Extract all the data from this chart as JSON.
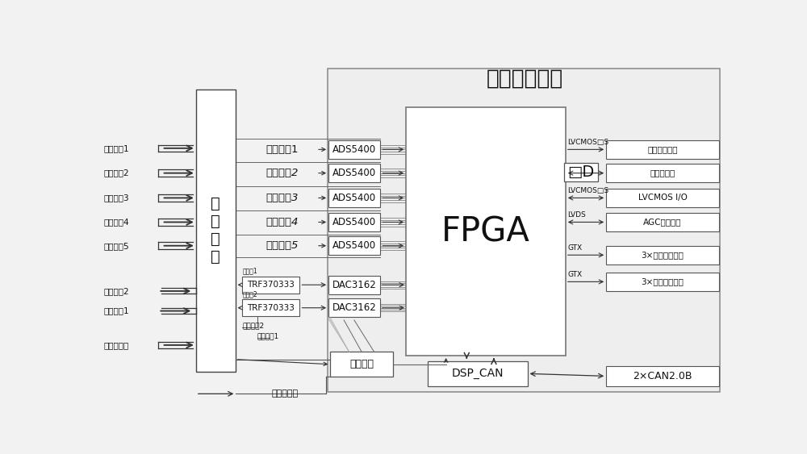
{
  "title": "数字处理模块",
  "bg_color": "#f2f2f2",
  "box_fill": "#ffffff",
  "text_color": "#111111",
  "left_recv": [
    "接收信道1",
    "接收信道2",
    "接收信道3",
    "接收信道4",
    "接收信道5"
  ],
  "left_tx": [
    "发射信道2",
    "发射信道1",
    "外时钟接收"
  ],
  "channel_module": "信\n道\n模\n块",
  "amp_signals": [
    "放大信号1",
    "放大信号2",
    "放大信号3",
    "放大信号4",
    "放大信号5"
  ],
  "adc_labels": [
    "ADS5400",
    "ADS5400",
    "ADS5400",
    "ADS5400",
    "ADS5400"
  ],
  "dac_labels": [
    "DAC3162",
    "DAC3162"
  ],
  "trf_labels": [
    "TRF370333",
    "TRF370333"
  ],
  "trf_small": [
    "调制信1",
    "调制信2"
  ],
  "clk_label": "时钟同步",
  "dsp_label": "DSP_CAN",
  "fpga_label": "FPGA",
  "right_labels": [
    "同步串行总线",
    "开短路信号",
    "LVCMOS I/O",
    "AGC控制接口",
    "3×串行数据输出",
    "3×串行数据输入"
  ],
  "right_bus": [
    "LVCMOS□S",
    "□D",
    "LVCMOS□S",
    "LVDS",
    "GTX",
    "GTX"
  ],
  "sqd_label": "□D",
  "can_label": "2×CAN2.0B",
  "power_label": "电源及控制",
  "mod_clk1": "调制时钟1",
  "mod_clk2": "调制时钟2"
}
